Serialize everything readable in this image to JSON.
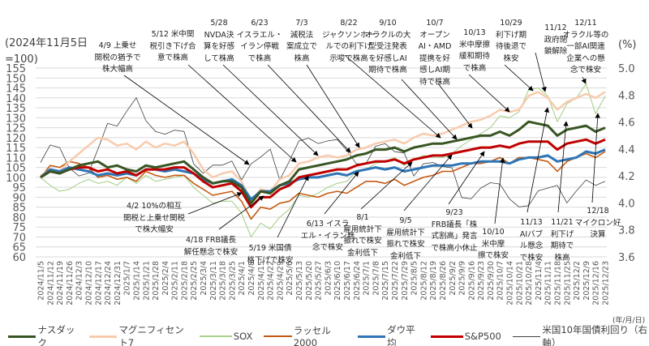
{
  "chart_data": {
    "type": "line",
    "left_axis_label": [
      "(2024年11月5日",
      "=100)"
    ],
    "right_axis_label": "(%)",
    "x_unit_label": "(年/月/日)",
    "ylim": [
      60,
      155
    ],
    "y_ticks": [
      155,
      150,
      145,
      140,
      135,
      130,
      125,
      120,
      115,
      110,
      105,
      100,
      95,
      90,
      85,
      80,
      75,
      70,
      65,
      60
    ],
    "y2lim": [
      3.6,
      5.0
    ],
    "y2_ticks": [
      "5.0",
      "4.8",
      "4.6",
      "4.4",
      "4.2",
      "4.0",
      "3.8",
      "3.6"
    ],
    "grid": true,
    "legend_position": "bottom",
    "x": [
      "2024/11/5",
      "2024/11/12",
      "2024/11/19",
      "2024/11/26",
      "2024/12/3",
      "2024/12/10",
      "2024/12/17",
      "2024/12/24",
      "2024/12/31",
      "2025/1/7",
      "2025/1/14",
      "2025/1/21",
      "2025/1/28",
      "2025/2/4",
      "2025/2/11",
      "2025/2/18",
      "2025/2/25",
      "2025/3/4",
      "2025/3/11",
      "2025/3/18",
      "2025/3/25",
      "2025/4/1",
      "2025/4/8",
      "2025/4/15",
      "2025/4/22",
      "2025/4/29",
      "2025/5/6",
      "2025/5/13",
      "2025/5/20",
      "2025/5/27",
      "2025/6/3",
      "2025/6/10",
      "2025/6/17",
      "2025/6/24",
      "2025/7/1",
      "2025/7/8",
      "2025/7/15",
      "2025/7/22",
      "2025/7/29",
      "2025/8/5",
      "2025/8/12",
      "2025/8/19",
      "2025/8/26",
      "2025/9/2",
      "2025/9/9",
      "2025/9/16",
      "2025/9/23",
      "2025/9/30",
      "2025/10/7",
      "2025/10/14",
      "2025/10/21",
      "2025/10/28",
      "2025/11/4",
      "2025/11/11",
      "2025/11/18",
      "2025/11/25",
      "2025/12/2",
      "2025/12/9",
      "2025/12/16",
      "2025/12/23"
    ],
    "series": [
      {
        "name": "マグニフィセント7",
        "color": "#f8cbad",
        "axis": "left",
        "values": [
          101,
          104,
          103,
          108,
          112,
          116,
          120,
          119,
          116,
          117,
          114,
          118,
          115,
          117,
          116,
          118,
          112,
          104,
          100,
          102,
          103,
          98,
          88,
          94,
          93,
          99,
          101,
          107,
          108,
          110,
          111,
          110,
          111,
          114,
          115,
          117,
          118,
          119,
          117,
          120,
          122,
          121,
          122,
          124,
          126,
          128,
          129,
          131,
          134,
          133,
          134,
          141,
          143,
          140,
          134,
          138,
          140,
          142,
          140,
          143
        ]
      },
      {
        "name": "SOX",
        "color": "#a9d18e",
        "axis": "left",
        "values": [
          100,
          96,
          93,
          94,
          97,
          99,
          97,
          98,
          96,
          100,
          97,
          101,
          98,
          99,
          100,
          101,
          95,
          91,
          87,
          88,
          88,
          82,
          70,
          77,
          74,
          80,
          84,
          91,
          90,
          92,
          95,
          97,
          98,
          103,
          104,
          107,
          108,
          110,
          106,
          109,
          111,
          110,
          110,
          112,
          116,
          119,
          122,
          125,
          131,
          130,
          133,
          144,
          145,
          141,
          128,
          137,
          140,
          147,
          132,
          141
        ]
      },
      {
        "name": "ラッセル2000",
        "color": "#c55a11",
        "axis": "left",
        "values": [
          100,
          106,
          105,
          108,
          107,
          105,
          100,
          101,
          99,
          100,
          98,
          103,
          101,
          100,
          101,
          101,
          97,
          94,
          91,
          92,
          93,
          88,
          79,
          85,
          84,
          87,
          88,
          92,
          91,
          90,
          92,
          93,
          92,
          95,
          98,
          98,
          97,
          99,
          96,
          98,
          100,
          101,
          103,
          103,
          105,
          107,
          107,
          108,
          110,
          107,
          110,
          110,
          109,
          108,
          103,
          108,
          110,
          112,
          110,
          113
        ]
      },
      {
        "name": "ダウ平均",
        "color": "#2e75b6",
        "axis": "left",
        "values": [
          100,
          104,
          103,
          105,
          104,
          103,
          101,
          102,
          101,
          102,
          101,
          104,
          104,
          103,
          104,
          103,
          102,
          99,
          97,
          98,
          99,
          96,
          89,
          93,
          93,
          96,
          97,
          99,
          100,
          100,
          101,
          102,
          101,
          103,
          104,
          105,
          104,
          105,
          103,
          104,
          105,
          106,
          106,
          106,
          107,
          107,
          108,
          108,
          108,
          107,
          109,
          110,
          110,
          111,
          108,
          109,
          110,
          113,
          112,
          114
        ]
      },
      {
        "name": "S&P500",
        "color": "#c00000",
        "axis": "left",
        "values": [
          100,
          103,
          102,
          104,
          105,
          105,
          103,
          104,
          102,
          103,
          101,
          104,
          104,
          104,
          105,
          105,
          102,
          98,
          95,
          96,
          97,
          93,
          85,
          90,
          90,
          94,
          96,
          100,
          101,
          102,
          103,
          104,
          104,
          106,
          107,
          108,
          108,
          109,
          107,
          109,
          110,
          111,
          111,
          112,
          113,
          114,
          115,
          115,
          116,
          115,
          117,
          118,
          118,
          118,
          114,
          117,
          118,
          119,
          117,
          119
        ]
      },
      {
        "name": "ナスダック",
        "color": "#375623",
        "axis": "left",
        "values": [
          100,
          103,
          102,
          104,
          106,
          107,
          108,
          105,
          106,
          104,
          103,
          106,
          105,
          106,
          107,
          108,
          104,
          100,
          97,
          98,
          98,
          95,
          87,
          93,
          92,
          96,
          98,
          104,
          105,
          106,
          107,
          108,
          109,
          111,
          112,
          114,
          114,
          115,
          113,
          115,
          116,
          117,
          117,
          118,
          119,
          120,
          121,
          121,
          123,
          121,
          124,
          128,
          127,
          126,
          121,
          124,
          125,
          126,
          123,
          125
        ]
      },
      {
        "name": "米国10年国債利回り（右軸）",
        "color": "#404040",
        "axis": "right",
        "values": [
          4.3,
          4.43,
          4.41,
          4.26,
          4.2,
          4.22,
          4.4,
          4.59,
          4.57,
          4.68,
          4.78,
          4.61,
          4.53,
          4.51,
          4.54,
          4.53,
          4.29,
          4.22,
          4.28,
          4.28,
          4.31,
          4.17,
          4.29,
          4.34,
          4.4,
          4.17,
          4.31,
          4.46,
          4.48,
          4.44,
          4.46,
          4.47,
          4.39,
          4.29,
          4.29,
          4.42,
          4.44,
          4.38,
          4.37,
          4.2,
          4.29,
          4.3,
          4.27,
          4.26,
          4.04,
          4.03,
          4.11,
          4.15,
          4.14,
          4.03,
          3.97,
          3.98,
          4.09,
          4.11,
          4.13,
          4.0,
          4.09,
          4.17,
          4.13,
          4.16
        ]
      }
    ],
    "legend": [
      "ナスダック",
      "マグニフィセント7",
      "SOX",
      "ラッセル2000",
      "ダウ平均",
      "S&P500",
      "米国10年国債利回り（右軸）"
    ],
    "annotations": [
      [
        "4/9 上乗せ",
        "関税の猶予で",
        "株大幅高"
      ],
      [
        "5/12 米中関",
        "税引き下げ合",
        "意で株高"
      ],
      [
        "5/28",
        "NVDA決",
        "算を好感",
        "して株高"
      ],
      [
        "6/23",
        "イスラエル・",
        "イラン停戦",
        "で株高"
      ],
      [
        "7/3",
        "減税法",
        "案成立で",
        "株高"
      ],
      [
        "8/22",
        "ジャクソンホー",
        "ルでの利下げ",
        "示唆で株高"
      ],
      [
        "9/10",
        "オラクルの大",
        "型受注発表",
        "を好感しAI",
        "期待で株高"
      ],
      [
        "10/7",
        "オープン",
        "AI・AMD",
        "提携を好",
        "感しAI期",
        "待で株高"
      ],
      [
        "10/13",
        "米中摩擦",
        "緩和期待",
        "で株高"
      ],
      [
        "10/29",
        "利下げ期",
        "待後退で",
        "株安"
      ],
      [
        "11/12",
        "政府閉",
        "鎖解除"
      ],
      [
        "12/11",
        "オラクル等の",
        "一部AI関連",
        "企業への懸",
        "念で株安"
      ],
      [
        "4/2 10%の相互",
        "関税と上乗せ関税",
        "で株大幅安"
      ],
      [
        "4/18 FRB議長",
        "解任懸念で株安"
      ],
      [
        "5/19 米国債",
        "格下げで株安"
      ],
      [
        "6/13 イスラ",
        "エル・イラン懸",
        "念で株安"
      ],
      [
        "8/1",
        "雇用統計下",
        "振れで株安",
        "金利低下"
      ],
      [
        "9/5",
        "雇用統計下",
        "振れで株安",
        "金利低下"
      ],
      [
        "9/23",
        "FRB議長「株",
        "式割高」発言",
        "で株高小休止"
      ],
      [
        "10/10",
        "米中摩",
        "擦で株安"
      ],
      [
        "11/13",
        "AIバブ",
        "ル懸念",
        "で株安"
      ],
      [
        "11/21",
        "利下げ",
        "期待で",
        "株高"
      ],
      [
        "12/18",
        "マイクロン好",
        "決算"
      ]
    ]
  }
}
